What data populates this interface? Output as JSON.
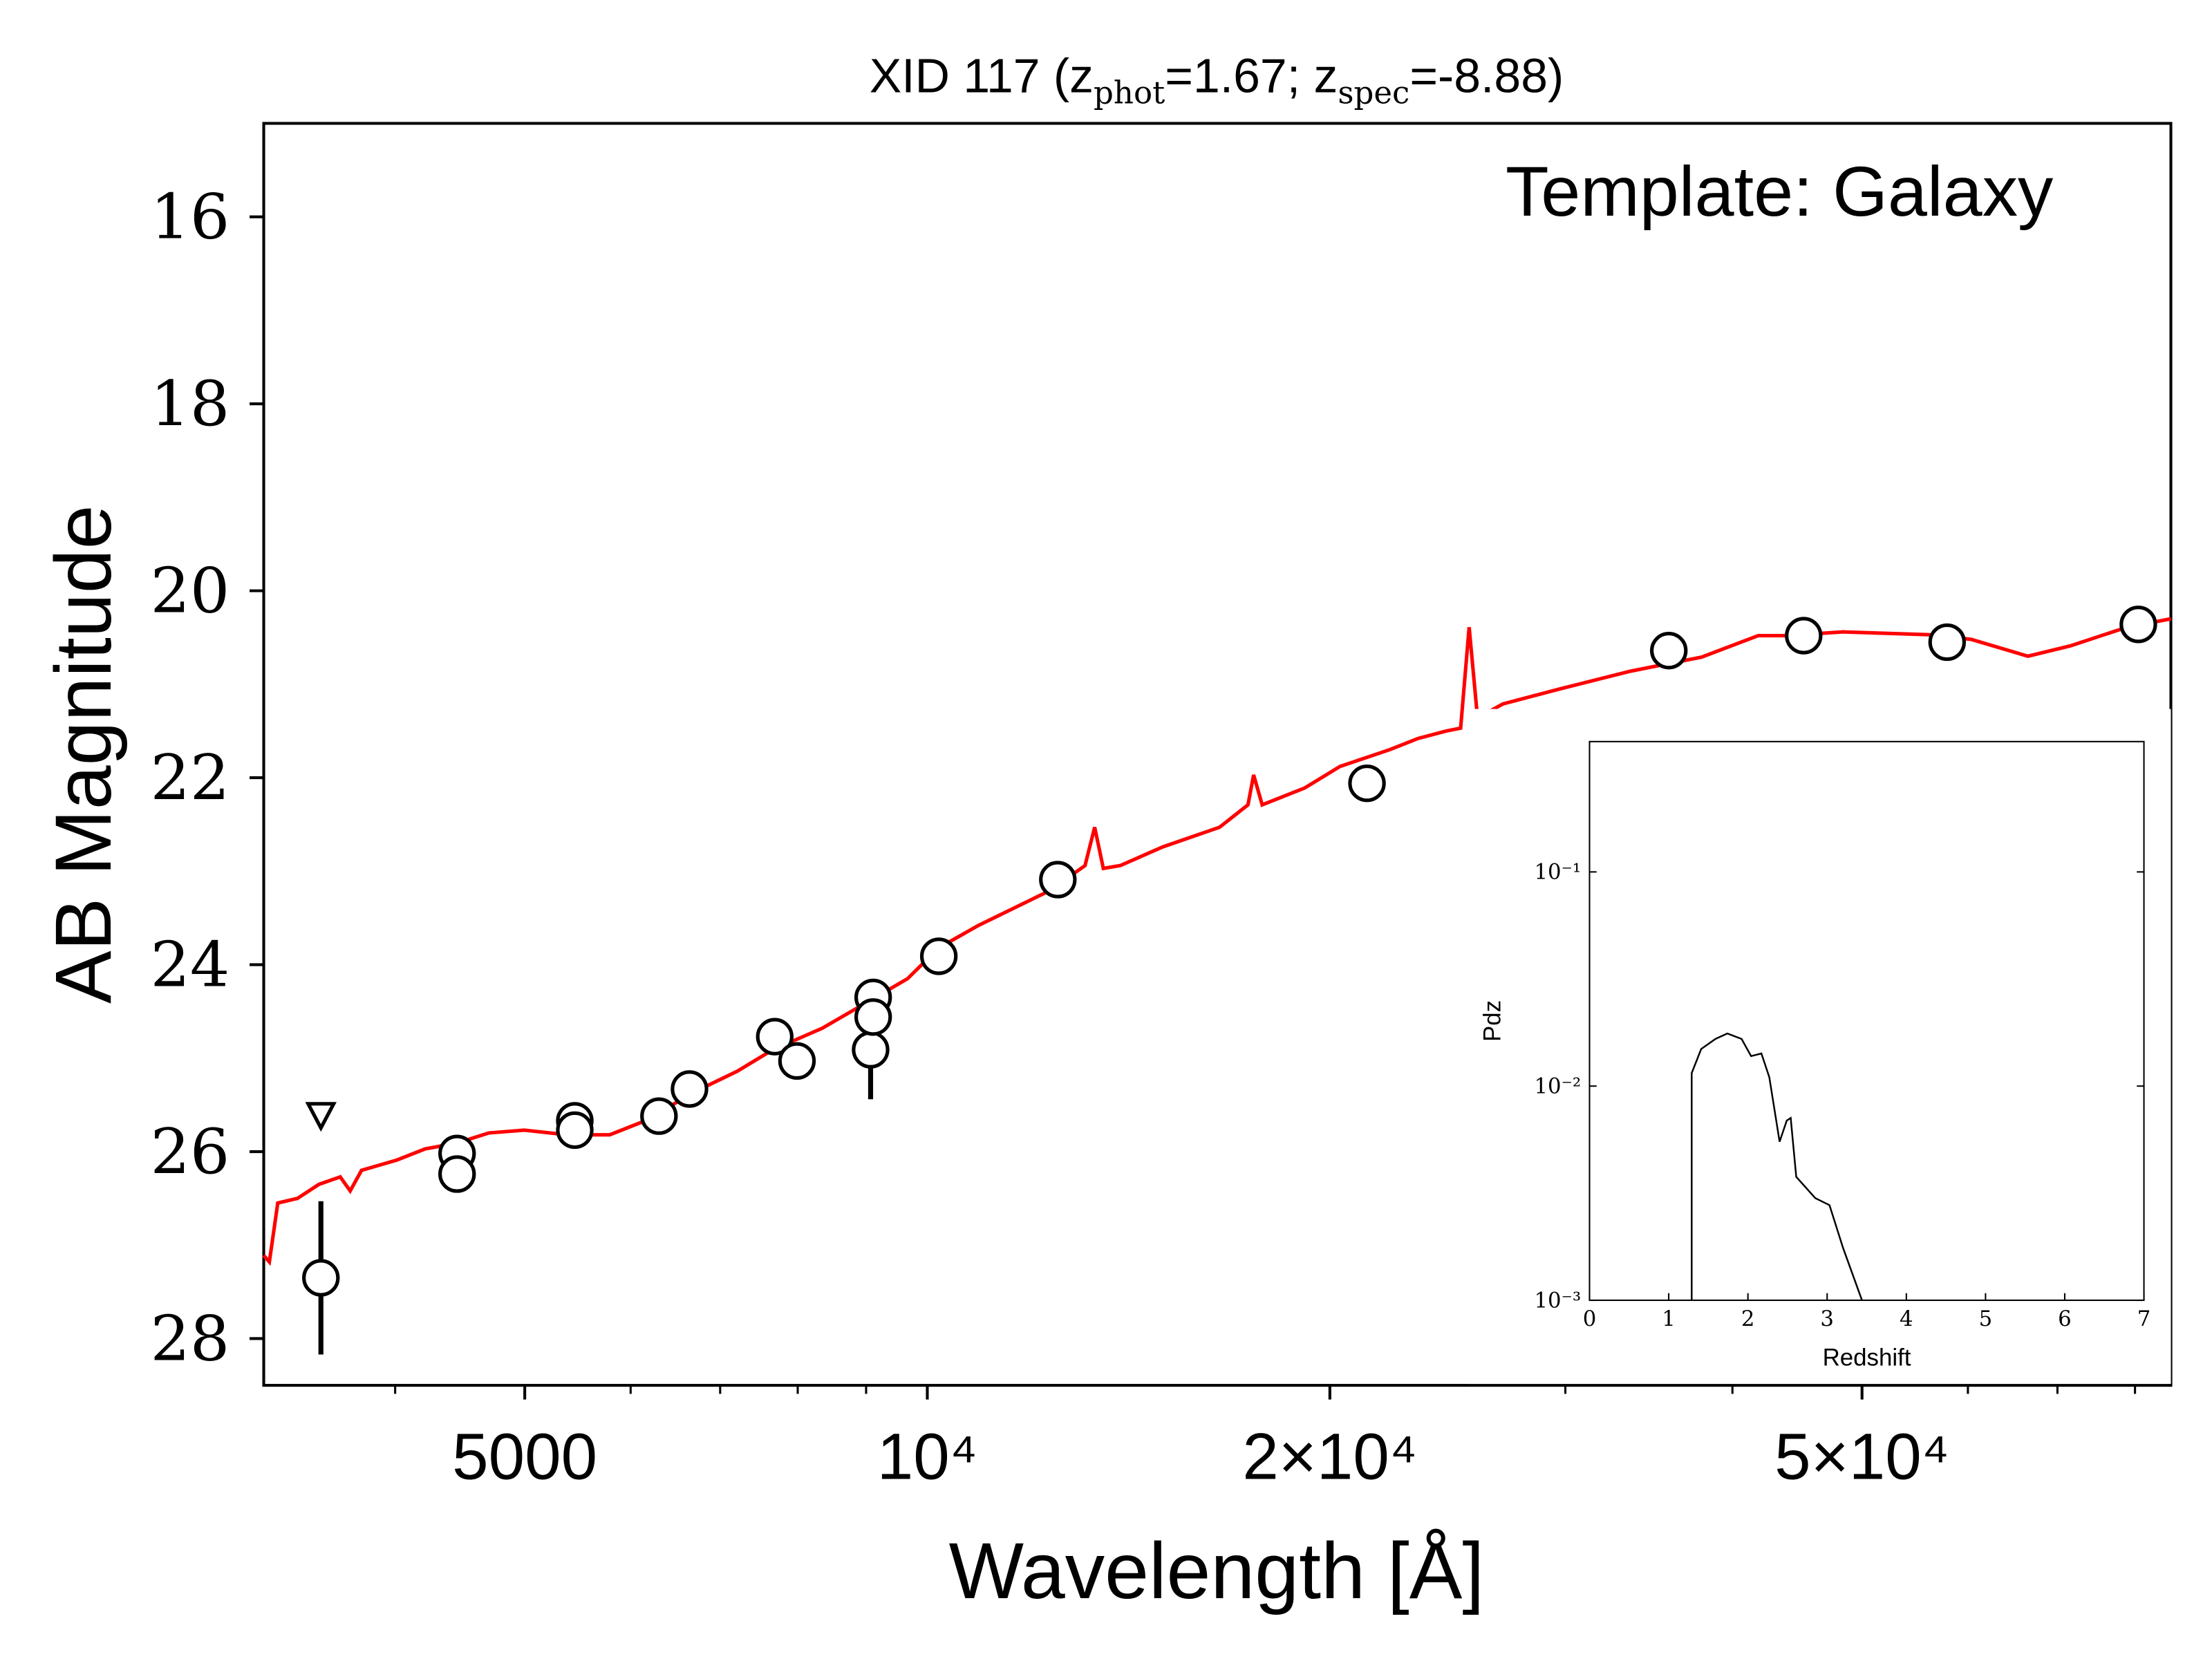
{
  "chart_data": [
    {
      "type": "scatter",
      "title": [
        "XID 117 (z",
        "phot",
        "=1.67; z",
        "spec",
        "=-8.88)"
      ],
      "annotation": "Template: Galaxy",
      "xlabel": "Wavelength [Å]",
      "ylabel": "AB Magnitude",
      "xscale": "log",
      "xlim": [
        3190,
        85100
      ],
      "ylim": [
        28.5,
        15
      ],
      "xticks": [
        5000,
        {
          "value": 10000,
          "label": "10⁴"
        },
        {
          "value": 20000,
          "label": "2×10⁴"
        },
        {
          "value": 50000,
          "label": "5×10⁴"
        }
      ],
      "xticks_minor": [
        4000,
        6000,
        7000,
        8000,
        9000,
        30000,
        40000,
        60000,
        70000,
        80000
      ],
      "yticks": [
        16,
        18,
        20,
        22,
        24,
        26,
        28
      ],
      "photometry": {
        "color": "#000000",
        "x": [
          3520,
          4450,
          4450,
          5450,
          5450,
          6300,
          6640,
          7690,
          7990,
          9070,
          9110,
          9110,
          10200,
          12520,
          21320,
          35850,
          45220,
          57890,
          80460
        ],
        "y": [
          27.35,
          26.02,
          26.24,
          25.67,
          25.77,
          25.62,
          25.33,
          24.77,
          25.03,
          24.91,
          24.35,
          24.56,
          23.91,
          23.09,
          22.06,
          20.64,
          20.48,
          20.55,
          20.36
        ],
        "errors": [
          0.82,
          0.1,
          0.1,
          0.1,
          0.1,
          0.1,
          0.1,
          0.1,
          0.1,
          0.53,
          0.1,
          0.1,
          0.1,
          0.1,
          0.15,
          0.1,
          0.1,
          0.1,
          0.1
        ]
      },
      "upper_limits": {
        "x": [
          3520
        ],
        "y": [
          25.61
        ]
      },
      "model": {
        "color": "#ff0000",
        "x": [
          3190,
          3221,
          3268,
          3381,
          3508,
          3639,
          3702,
          3775,
          4012,
          4213,
          4445,
          4701,
          4995,
          5378,
          5788,
          6152,
          6699,
          7209,
          7664,
          8346,
          9070,
          9665,
          10200,
          10920,
          12340,
          13120,
          13340,
          13540,
          13940,
          15000,
          16540,
          17370,
          17540,
          17800,
          19150,
          20350,
          22170,
          23280,
          24440,
          25050,
          25420,
          25790,
          26950,
          29720,
          33570,
          37930,
          41820,
          43920,
          48430,
          56080,
          60330,
          66530,
          71560,
          78900,
          85110
        ],
        "y": [
          27.11,
          27.18,
          26.55,
          26.5,
          26.35,
          26.27,
          26.42,
          26.2,
          26.09,
          25.97,
          25.91,
          25.8,
          25.77,
          25.82,
          25.82,
          25.67,
          25.36,
          25.14,
          24.91,
          24.68,
          24.38,
          24.15,
          23.82,
          23.58,
          23.21,
          22.94,
          22.53,
          22.97,
          22.94,
          22.74,
          22.53,
          22.29,
          21.97,
          22.29,
          22.11,
          21.88,
          21.7,
          21.58,
          21.5,
          21.47,
          20.39,
          21.36,
          21.21,
          21.05,
          20.86,
          20.71,
          20.48,
          20.48,
          20.44,
          20.47,
          20.52,
          20.7,
          20.59,
          20.39,
          20.3
        ]
      }
    },
    {
      "type": "line",
      "xlabel": "Redshift",
      "ylabel": "Pdz",
      "yscale": "log",
      "xlim": [
        0,
        7
      ],
      "ylim": [
        0.001,
        0.406
      ],
      "xticks": [
        0,
        1,
        2,
        3,
        4,
        5,
        6,
        7
      ],
      "yticks": [
        {
          "value": 0.001,
          "label": "10⁻³"
        },
        {
          "value": 0.01,
          "label": "10⁻²"
        },
        {
          "value": 0.1,
          "label": "10⁻¹"
        }
      ],
      "color": "#000000",
      "x": [
        1.29,
        1.29,
        1.41,
        1.59,
        1.74,
        1.92,
        2.04,
        2.17,
        2.27,
        2.4,
        2.49,
        2.54,
        2.61,
        2.85,
        3.03,
        3.2,
        3.44
      ],
      "values": [
        0.001,
        0.0115,
        0.0149,
        0.0166,
        0.0176,
        0.0166,
        0.0138,
        0.0142,
        0.011,
        0.0055,
        0.0069,
        0.0071,
        0.00377,
        0.003,
        0.00278,
        0.00176,
        0.001
      ]
    }
  ]
}
